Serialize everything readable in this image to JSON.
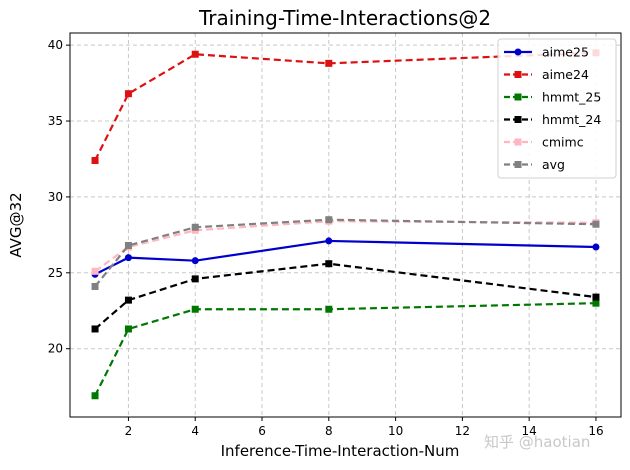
{
  "chart_data": {
    "type": "line",
    "title": "Training-Time-Interactions@2",
    "xlabel": "Inference-Time-Interaction-Num",
    "ylabel": "AVG@32",
    "x": [
      1,
      2,
      4,
      8,
      16
    ],
    "xticks": [
      2,
      4,
      6,
      8,
      10,
      12,
      14,
      16
    ],
    "yticks": [
      20,
      25,
      30,
      35,
      40
    ],
    "xlim": [
      0.25,
      16.75
    ],
    "ylim": [
      15.5,
      40.8
    ],
    "grid": true,
    "legend_position": "top-right",
    "series": [
      {
        "name": "aime25",
        "values": [
          24.9,
          26.0,
          25.8,
          27.1,
          26.7
        ],
        "color": "#0000cc",
        "dash": "solid",
        "marker": "circle"
      },
      {
        "name": "aime24",
        "values": [
          32.4,
          36.8,
          39.4,
          38.8,
          39.5
        ],
        "color": "#dd1111",
        "dash": "dashed",
        "marker": "square"
      },
      {
        "name": "hmmt_25",
        "values": [
          16.9,
          21.3,
          22.6,
          22.6,
          23.0
        ],
        "color": "#007700",
        "dash": "dashed",
        "marker": "square"
      },
      {
        "name": "hmmt_24",
        "values": [
          21.3,
          23.2,
          24.6,
          25.6,
          23.4
        ],
        "color": "#000000",
        "dash": "dashed",
        "marker": "square"
      },
      {
        "name": "cmimc",
        "values": [
          25.1,
          26.7,
          27.8,
          28.4,
          28.3
        ],
        "color": "#ffb6c1",
        "dash": "dashed",
        "marker": "square"
      },
      {
        "name": "avg",
        "values": [
          24.1,
          26.8,
          28.0,
          28.5,
          28.2
        ],
        "color": "#808080",
        "dash": "dashed",
        "marker": "square"
      }
    ]
  },
  "watermark": "知乎 @haotian"
}
